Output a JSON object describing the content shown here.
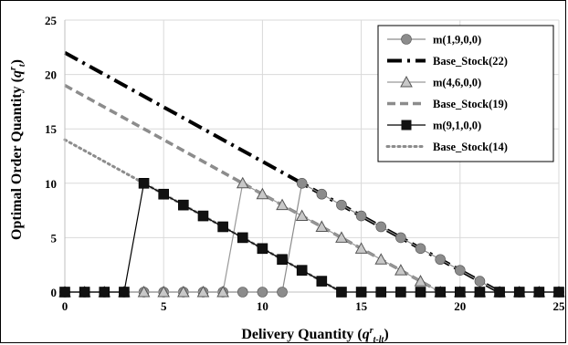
{
  "chart_data": {
    "type": "line",
    "xlabel": "Delivery Quantity (q^r_t-lt)",
    "ylabel": "Optimal Order Quantity (q^r_t)",
    "xlabel_parts": {
      "main": "Delivery Quantity (",
      "q": "q",
      "sup": "r",
      "sub": "t-lt",
      "close": ")"
    },
    "ylabel_parts": {
      "main": "Optimal Order Quantity (",
      "q": "q",
      "sup": "r",
      "sub": "t",
      "close": ")"
    },
    "xlim": [
      0,
      25
    ],
    "ylim": [
      0,
      25
    ],
    "xticks": [
      "0",
      "5",
      "10",
      "15",
      "20",
      "25"
    ],
    "yticks": [
      "0",
      "5",
      "10",
      "15",
      "20",
      "25"
    ],
    "grid": true,
    "legend_position": "top-right",
    "series": [
      {
        "name": "m(1,9,0,0)",
        "style": "circle-marker-line",
        "color": "#8c8c8c",
        "x": [
          0,
          1,
          2,
          3,
          4,
          5,
          6,
          7,
          8,
          9,
          10,
          11,
          12,
          13,
          14,
          15,
          16,
          17,
          18,
          19,
          20,
          21,
          22,
          23,
          24,
          25
        ],
        "y": [
          0,
          0,
          0,
          0,
          0,
          0,
          0,
          0,
          0,
          0,
          0,
          0,
          10,
          9,
          8,
          7,
          6,
          5,
          4,
          3,
          2,
          1,
          0,
          0,
          0,
          0
        ]
      },
      {
        "name": "Base_Stock(22)",
        "style": "dash-dot",
        "color": "#000000",
        "x": [
          0,
          22
        ],
        "y": [
          22,
          0
        ]
      },
      {
        "name": "m(4,6,0,0)",
        "style": "triangle-marker-line",
        "color": "#999999",
        "x": [
          0,
          1,
          2,
          3,
          4,
          5,
          6,
          7,
          8,
          9,
          10,
          11,
          12,
          13,
          14,
          15,
          16,
          17,
          18,
          19,
          20,
          21,
          22,
          23,
          24,
          25
        ],
        "y": [
          0,
          0,
          0,
          0,
          0,
          0,
          0,
          0,
          0,
          10,
          9,
          8,
          7,
          6,
          5,
          4,
          3,
          2,
          1,
          0,
          0,
          0,
          0,
          0,
          0,
          0
        ]
      },
      {
        "name": "Base_Stock(19)",
        "style": "dashed",
        "color": "#8c8c8c",
        "x": [
          0,
          19
        ],
        "y": [
          19,
          0
        ]
      },
      {
        "name": "m(9,1,0,0)",
        "style": "square-marker-line",
        "color": "#000000",
        "x": [
          0,
          1,
          2,
          3,
          4,
          5,
          6,
          7,
          8,
          9,
          10,
          11,
          12,
          13,
          14,
          15,
          16,
          17,
          18,
          19,
          20,
          21,
          22,
          23,
          24,
          25
        ],
        "y": [
          0,
          0,
          0,
          0,
          10,
          9,
          8,
          7,
          6,
          5,
          4,
          3,
          2,
          1,
          0,
          0,
          0,
          0,
          0,
          0,
          0,
          0,
          0,
          0,
          0,
          0
        ]
      },
      {
        "name": "Base_Stock(14)",
        "style": "dotted",
        "color": "#8c8c8c",
        "x": [
          0,
          14
        ],
        "y": [
          14,
          0
        ]
      }
    ]
  }
}
